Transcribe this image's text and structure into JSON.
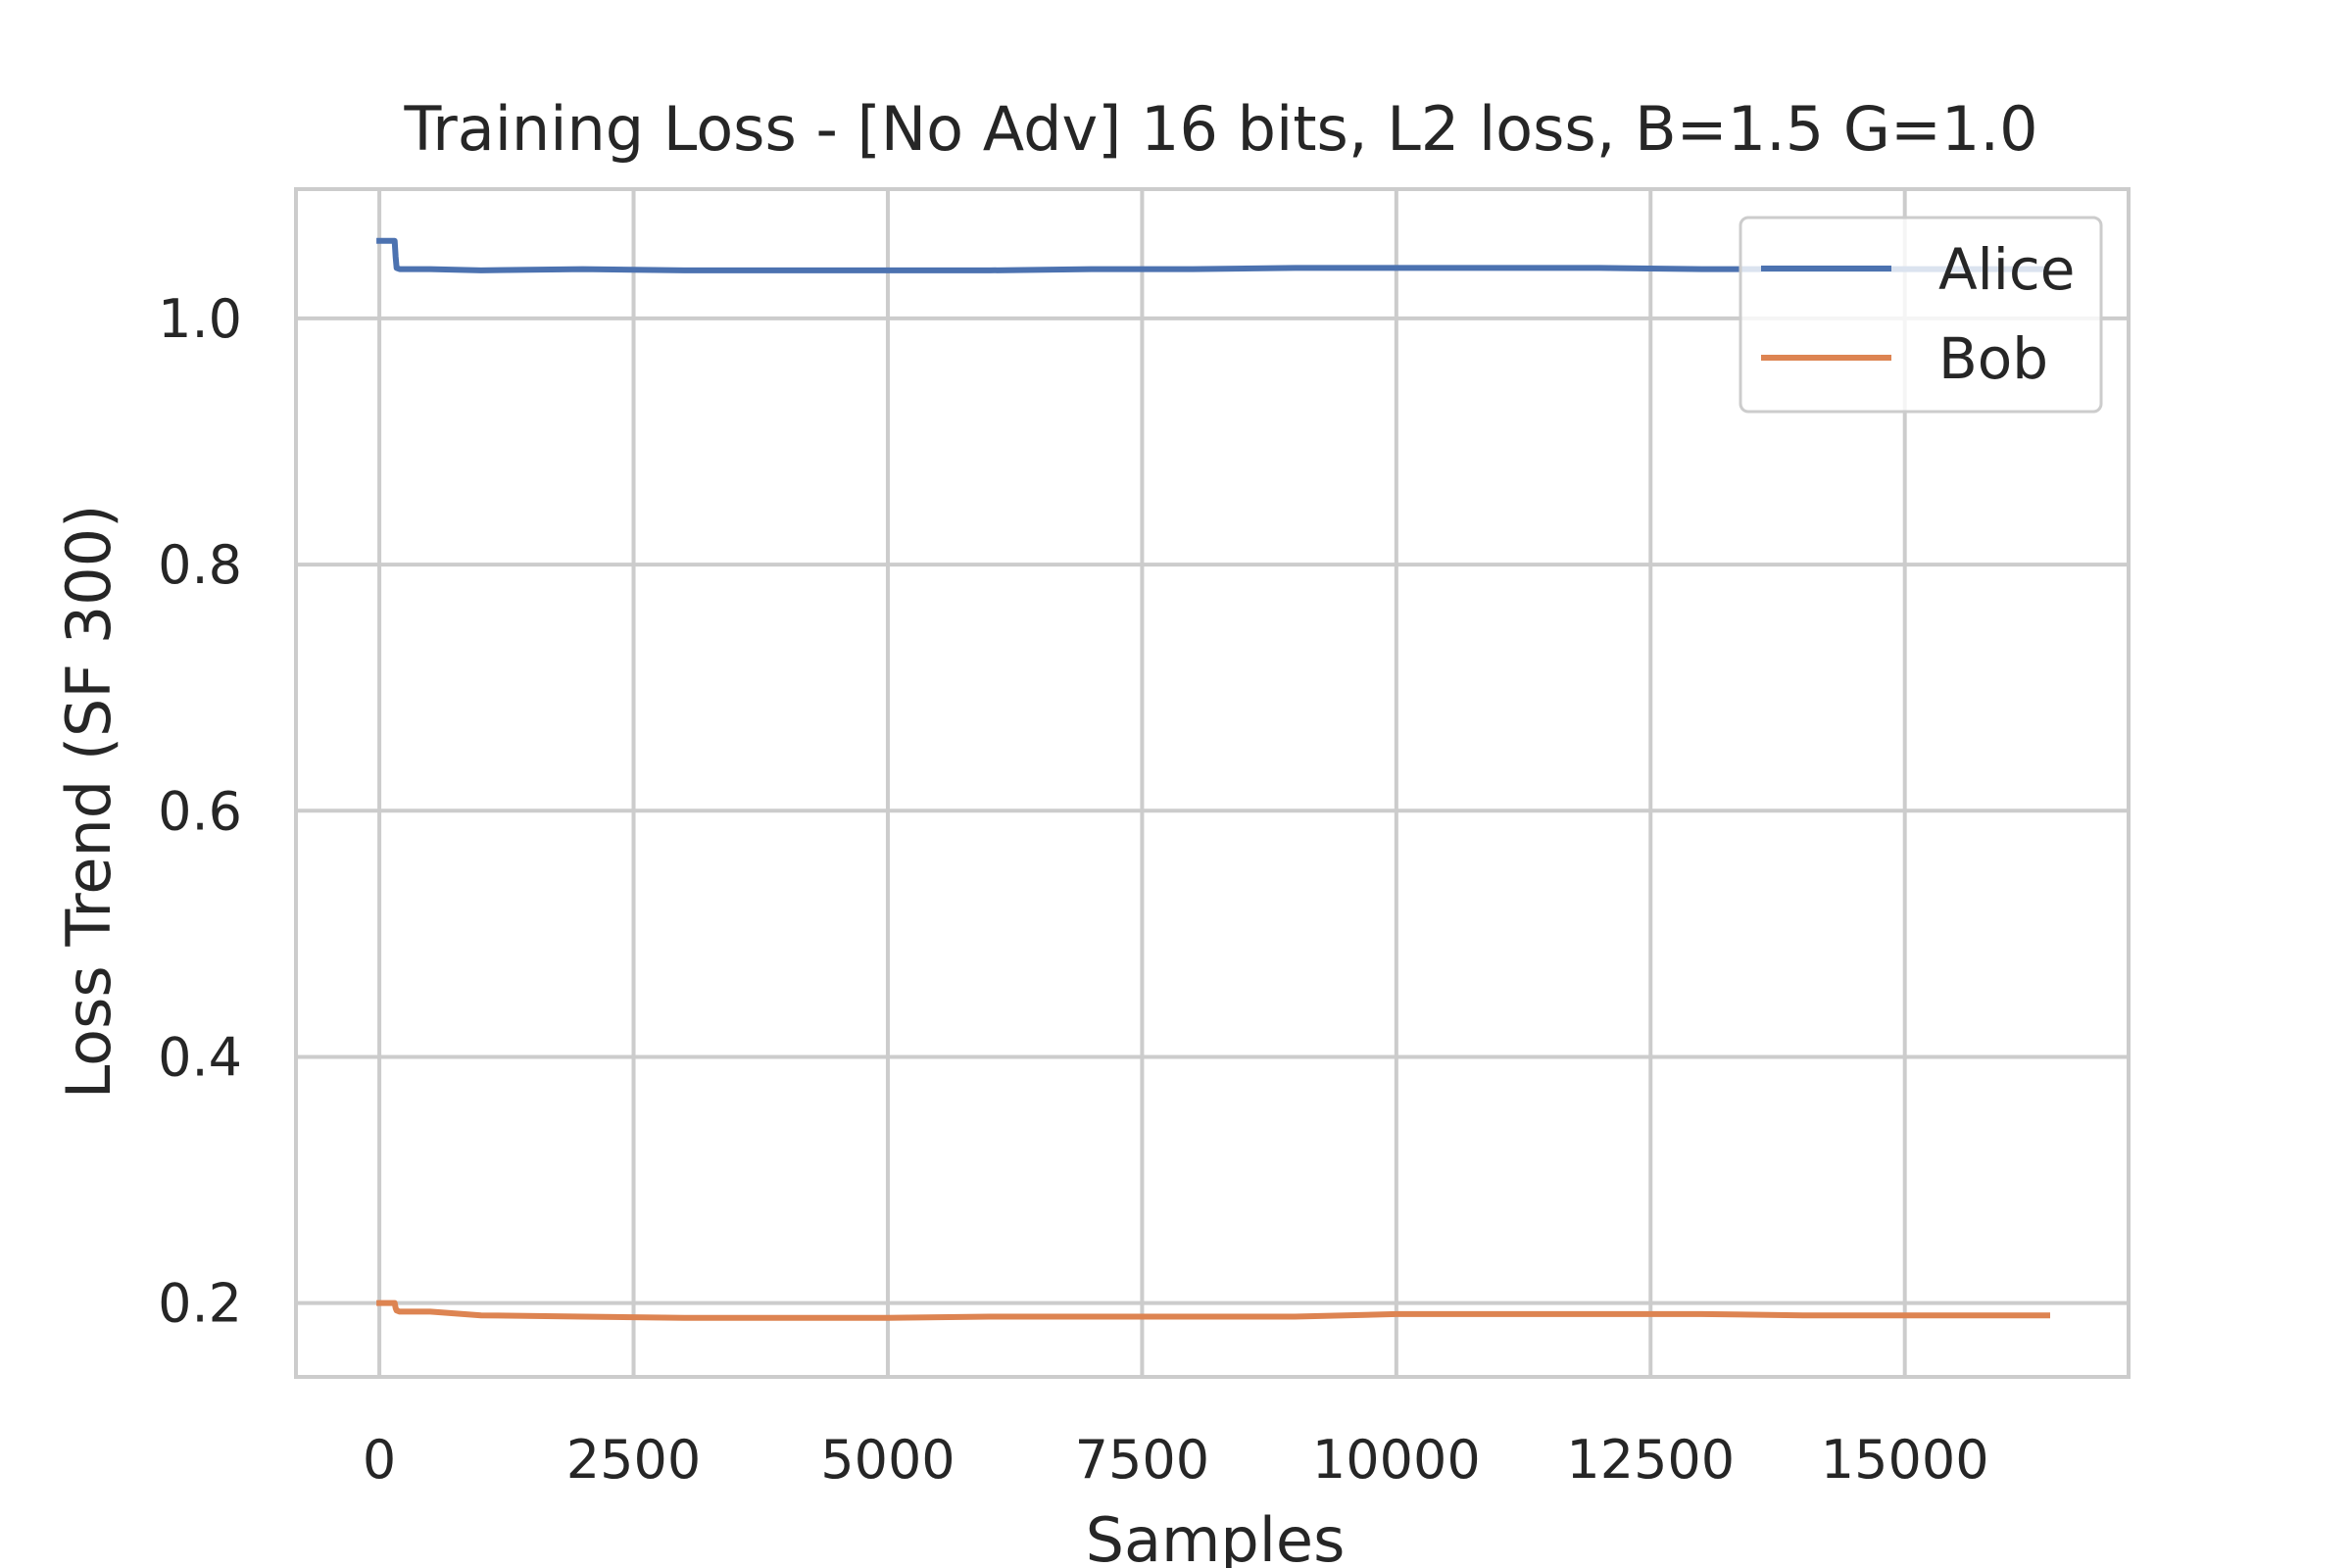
{
  "chart_data": {
    "type": "line",
    "title": "Training Loss - [No Adv] 16 bits, L2 loss, B=1.5 G=1.0",
    "xlabel": "Samples",
    "ylabel": "Loss Trend (SF 300)",
    "xlim": [
      -820,
      17200
    ],
    "ylim": [
      0.14,
      1.105
    ],
    "xticks": [
      0,
      2500,
      5000,
      7500,
      10000,
      12500,
      15000
    ],
    "yticks": [
      0.2,
      0.4,
      0.6,
      0.8,
      1.0
    ],
    "xtick_labels": [
      "0",
      "2500",
      "5000",
      "7500",
      "10000",
      "12500",
      "15000"
    ],
    "ytick_labels": [
      "0.2",
      "0.4",
      "0.6",
      "0.8",
      "1.0"
    ],
    "grid": true,
    "legend_position": "top-right",
    "series": [
      {
        "name": "Alice",
        "color": "#4c72b0",
        "x": [
          0,
          150,
          160,
          170,
          200,
          500,
          1000,
          2000,
          3000,
          4000,
          5000,
          6000,
          7000,
          8000,
          9000,
          10000,
          11000,
          12000,
          13000,
          14000,
          15000,
          16000,
          16400
        ],
        "y": [
          1.063,
          1.063,
          1.05,
          1.041,
          1.04,
          1.04,
          1.039,
          1.04,
          1.039,
          1.039,
          1.039,
          1.039,
          1.04,
          1.04,
          1.041,
          1.041,
          1.041,
          1.041,
          1.04,
          1.04,
          1.04,
          1.04,
          1.04
        ]
      },
      {
        "name": "Bob",
        "color": "#dd8452",
        "x": [
          0,
          150,
          160,
          170,
          200,
          500,
          1000,
          2000,
          3000,
          4000,
          5000,
          6000,
          7000,
          8000,
          9000,
          10000,
          11000,
          12000,
          13000,
          14000,
          15000,
          16000,
          16400
        ],
        "y": [
          0.2,
          0.2,
          0.196,
          0.194,
          0.193,
          0.193,
          0.19,
          0.189,
          0.188,
          0.188,
          0.188,
          0.189,
          0.189,
          0.189,
          0.189,
          0.191,
          0.191,
          0.191,
          0.191,
          0.19,
          0.19,
          0.19,
          0.19
        ]
      }
    ]
  }
}
